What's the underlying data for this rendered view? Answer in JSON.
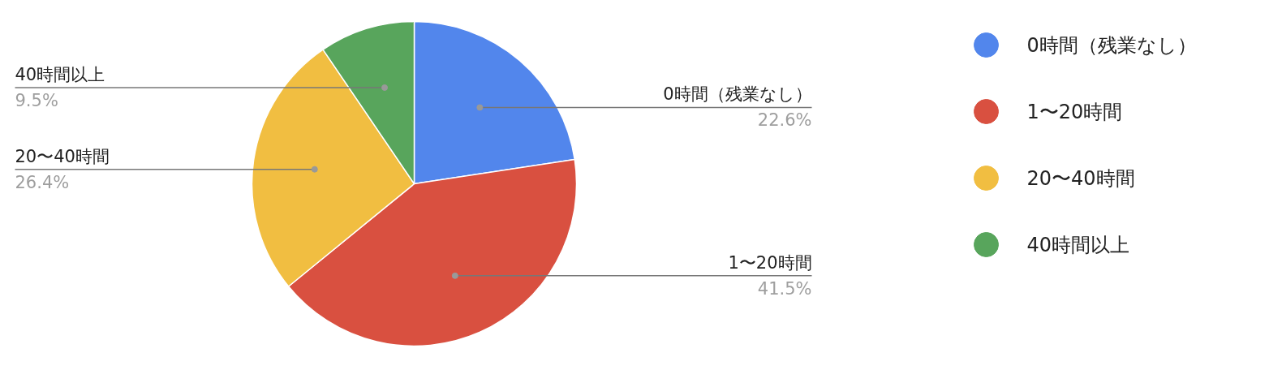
{
  "chart_data": {
    "type": "pie",
    "categories": [
      "0時間（残業なし）",
      "1〜20時間",
      "20〜40時間",
      "40時間以上"
    ],
    "values": [
      22.6,
      41.5,
      26.4,
      9.5
    ],
    "colors": [
      "#5286ec",
      "#d95040",
      "#f1be41",
      "#58a55c"
    ],
    "value_labels": [
      "22.6%",
      "41.5%",
      "26.4%",
      "9.5%"
    ],
    "legend": "right"
  }
}
